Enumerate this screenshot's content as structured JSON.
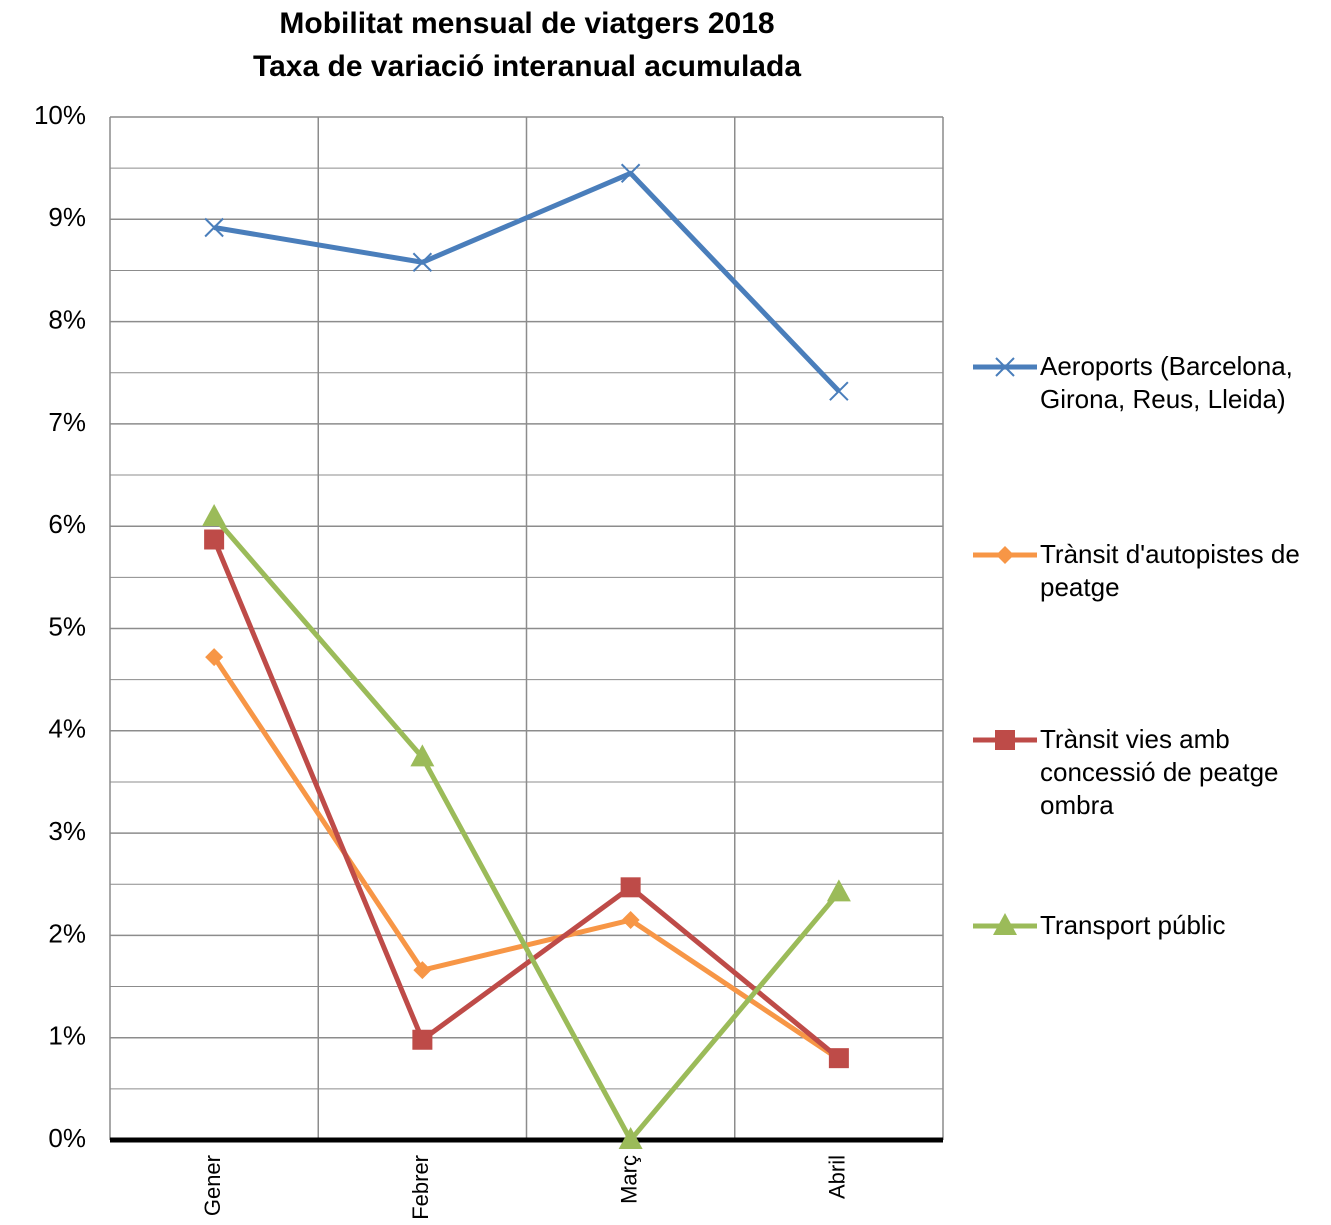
{
  "chart_data": {
    "type": "line",
    "title": "Mobilitat mensual de viatgers 2018",
    "subtitle": "Taxa de variació interanual acumulada",
    "categories": [
      "Gener",
      "Febrer",
      "Març",
      "Abril"
    ],
    "series": [
      {
        "name": "Aeroports (Barcelona, Girona, Reus, Lleida)",
        "color": "#4a7ebb",
        "marker": "x",
        "values": [
          8.92,
          8.58,
          9.45,
          7.32
        ]
      },
      {
        "name": "Trànsit d'autopistes de peatge",
        "color": "#f79646",
        "marker": "diamond",
        "values": [
          4.72,
          1.66,
          2.15,
          0.79
        ]
      },
      {
        "name": "Trànsit vies amb concessió de peatge ombra",
        "color": "#be4b48",
        "marker": "square",
        "values": [
          5.87,
          0.98,
          2.47,
          0.8
        ]
      },
      {
        "name": "Transport públic",
        "color": "#9bbb59",
        "marker": "triangle",
        "values": [
          6.09,
          3.74,
          0.0,
          2.42
        ]
      }
    ],
    "ylim": [
      0,
      10
    ],
    "yticks": [
      {
        "value": 0,
        "label": "0%"
      },
      {
        "value": 1,
        "label": "1%"
      },
      {
        "value": 2,
        "label": "2%"
      },
      {
        "value": 3,
        "label": "3%"
      },
      {
        "value": 4,
        "label": "4%"
      },
      {
        "value": 5,
        "label": "5%"
      },
      {
        "value": 6,
        "label": "6%"
      },
      {
        "value": 7,
        "label": "7%"
      },
      {
        "value": 8,
        "label": "8%"
      },
      {
        "value": 9,
        "label": "9%"
      },
      {
        "value": 10,
        "label": "10%"
      }
    ],
    "minor_yticks": [
      0.5,
      1.5,
      2.5,
      3.5,
      4.5,
      5.5,
      6.5,
      7.5,
      8.5,
      9.5
    ],
    "grid": true,
    "legend": "right"
  }
}
